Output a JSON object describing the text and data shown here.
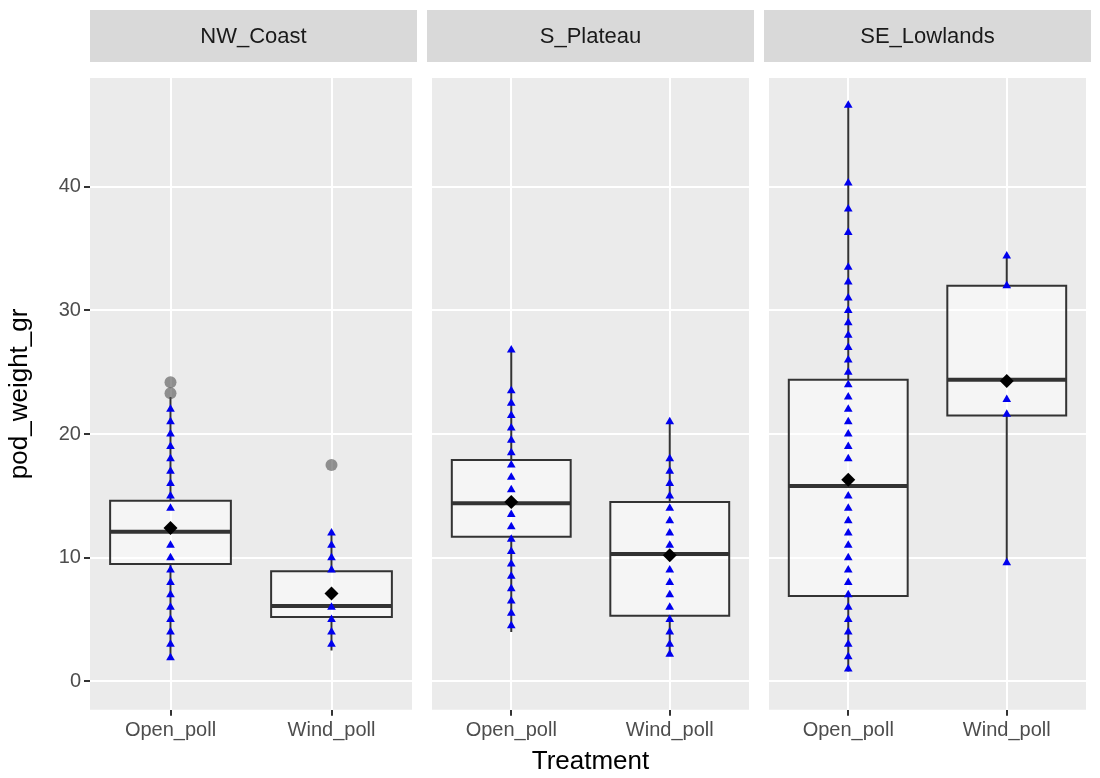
{
  "chart_data": [
    {
      "type": "box",
      "title": "NW_Coast",
      "ylabel": "pod_weight_gr",
      "categories": [
        "Open_poll",
        "Wind_poll"
      ],
      "ylim": [
        -2.3,
        48.8
      ],
      "yticks": [
        0,
        10,
        20,
        30,
        40
      ],
      "grid": true,
      "boxes": [
        {
          "low": 1.9,
          "q1": 9.5,
          "median": 12.1,
          "q3": 14.6,
          "high": 23.0,
          "mean": 12.4,
          "outliers": [
            23.3,
            24.2
          ]
        },
        {
          "low": 2.5,
          "q1": 5.2,
          "median": 6.1,
          "q3": 8.9,
          "high": 12.1,
          "mean": 7.1,
          "outliers": [
            17.5
          ]
        }
      ],
      "series": [
        {
          "type": "scatter",
          "color": "#0000ee",
          "marker": "triangle",
          "x": [
            "Open_poll",
            "Open_poll",
            "Open_poll",
            "Open_poll",
            "Open_poll",
            "Open_poll",
            "Open_poll",
            "Open_poll",
            "Open_poll",
            "Open_poll",
            "Open_poll",
            "Open_poll",
            "Open_poll",
            "Open_poll",
            "Open_poll",
            "Open_poll",
            "Open_poll",
            "Open_poll",
            "Open_poll",
            "Wind_poll",
            "Wind_poll",
            "Wind_poll",
            "Wind_poll",
            "Wind_poll",
            "Wind_poll",
            "Wind_poll",
            "Wind_poll"
          ],
          "values": [
            22.0,
            21.0,
            20.0,
            19.0,
            18.0,
            17.0,
            16.0,
            15.0,
            14.0,
            11.0,
            10.0,
            9.0,
            8.0,
            7.0,
            6.0,
            5.0,
            4.0,
            3.0,
            1.9,
            12.0,
            11.0,
            10.0,
            9.0,
            6.0,
            5.0,
            4.0,
            3.0
          ]
        }
      ]
    },
    {
      "type": "box",
      "title": "S_Plateau",
      "xlabel": "Treatment",
      "categories": [
        "Open_poll",
        "Wind_poll"
      ],
      "ylim": [
        -2.3,
        48.8
      ],
      "yticks": [
        0,
        10,
        20,
        30,
        40
      ],
      "grid": true,
      "tick_labels": "x",
      "boxes": [
        {
          "low": 4.0,
          "q1": 11.7,
          "median": 14.4,
          "q3": 17.9,
          "high": 26.7,
          "mean": 14.5
        },
        {
          "low": 2.2,
          "q1": 5.3,
          "median": 10.3,
          "q3": 14.5,
          "high": 20.9,
          "mean": 10.2
        }
      ],
      "series": [
        {
          "type": "scatter",
          "color": "#0000ee",
          "marker": "triangle",
          "x": [
            "Open_poll",
            "Open_poll",
            "Open_poll",
            "Open_poll",
            "Open_poll",
            "Open_poll",
            "Open_poll",
            "Open_poll",
            "Open_poll",
            "Open_poll",
            "Open_poll",
            "Open_poll",
            "Open_poll",
            "Open_poll",
            "Open_poll",
            "Open_poll",
            "Open_poll",
            "Open_poll",
            "Open_poll",
            "Open_poll",
            "Wind_poll",
            "Wind_poll",
            "Wind_poll",
            "Wind_poll",
            "Wind_poll",
            "Wind_poll",
            "Wind_poll",
            "Wind_poll",
            "Wind_poll",
            "Wind_poll",
            "Wind_poll",
            "Wind_poll",
            "Wind_poll",
            "Wind_poll",
            "Wind_poll",
            "Wind_poll",
            "Wind_poll"
          ],
          "values": [
            26.8,
            23.5,
            22.5,
            21.5,
            20.5,
            19.5,
            18.5,
            17.5,
            16.5,
            15.5,
            13.5,
            12.5,
            11.5,
            10.5,
            9.5,
            8.5,
            7.5,
            6.5,
            5.5,
            4.5,
            21.0,
            18.0,
            17.0,
            16.0,
            15.0,
            14.0,
            13.0,
            12.0,
            11.0,
            9.0,
            8.0,
            7.0,
            6.0,
            5.0,
            4.0,
            3.0,
            2.2
          ]
        }
      ]
    },
    {
      "type": "box",
      "title": "SE_Lowlands",
      "categories": [
        "Open_poll",
        "Wind_poll"
      ],
      "ylim": [
        -2.3,
        48.8
      ],
      "yticks": [
        0,
        10,
        20,
        30,
        40
      ],
      "grid": true,
      "tick_labels": "x",
      "boxes": [
        {
          "low": 0.8,
          "q1": 6.9,
          "median": 15.8,
          "q3": 24.4,
          "high": 46.5,
          "mean": 16.3
        },
        {
          "low": 9.6,
          "q1": 21.5,
          "median": 24.4,
          "q3": 32.0,
          "high": 34.4,
          "mean": 24.3
        }
      ],
      "series": [
        {
          "type": "scatter",
          "color": "#0000ee",
          "marker": "triangle",
          "x": [
            "Open_poll",
            "Open_poll",
            "Open_poll",
            "Open_poll",
            "Open_poll",
            "Open_poll",
            "Open_poll",
            "Open_poll",
            "Open_poll",
            "Open_poll",
            "Open_poll",
            "Open_poll",
            "Open_poll",
            "Open_poll",
            "Open_poll",
            "Open_poll",
            "Open_poll",
            "Open_poll",
            "Open_poll",
            "Open_poll",
            "Open_poll",
            "Open_poll",
            "Open_poll",
            "Open_poll",
            "Open_poll",
            "Open_poll",
            "Open_poll",
            "Open_poll",
            "Open_poll",
            "Open_poll",
            "Open_poll",
            "Open_poll",
            "Open_poll",
            "Open_poll",
            "Open_poll",
            "Wind_poll",
            "Wind_poll",
            "Wind_poll",
            "Wind_poll",
            "Wind_poll"
          ],
          "values": [
            46.6,
            40.3,
            38.2,
            36.3,
            33.5,
            32.3,
            31.0,
            30.0,
            29.0,
            28.0,
            27.0,
            26.0,
            25.0,
            24.0,
            23.0,
            22.0,
            21.0,
            20.0,
            19.0,
            18.0,
            15.0,
            14.0,
            13.0,
            12.0,
            11.0,
            10.0,
            9.0,
            8.0,
            7.0,
            6.0,
            5.0,
            4.0,
            3.0,
            2.0,
            1.0,
            34.4,
            32.0,
            22.8,
            21.6,
            9.6
          ]
        }
      ]
    }
  ]
}
